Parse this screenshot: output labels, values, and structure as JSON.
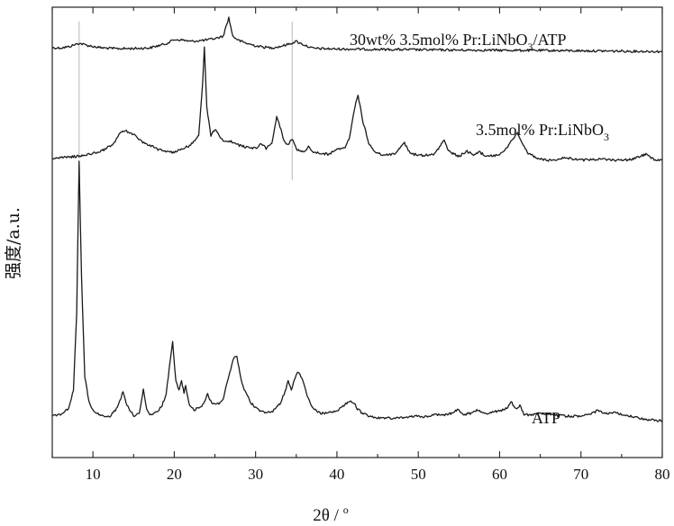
{
  "chart_data": {
    "type": "line",
    "xlabel_text": "2θ / ",
    "xlabel_unit": "o",
    "ylabel": "强度/a.u.",
    "xlim": [
      5,
      80
    ],
    "xticks": [
      10,
      20,
      30,
      40,
      50,
      60,
      70,
      80
    ],
    "minor_tick_step": 5,
    "y_ticks_shown": false,
    "grid": false,
    "reference_lines_x": [
      8.3,
      34.5
    ],
    "series": [
      {
        "name": "30wt%  3.5mol% Pr:LiNbO3/ATP",
        "label_main": "30wt%  3.5mol% Pr:LiNbO",
        "label_sub": "3",
        "label_tail": "/ATP",
        "color": "#1a1a1a",
        "points": [
          [
            5,
            0.62
          ],
          [
            6,
            0.6
          ],
          [
            7,
            0.75
          ],
          [
            8.3,
            1.25
          ],
          [
            9.5,
            0.9
          ],
          [
            11,
            0.62
          ],
          [
            13,
            0.5
          ],
          [
            15,
            0.52
          ],
          [
            17,
            0.6
          ],
          [
            19,
            1.2
          ],
          [
            20,
            1.75
          ],
          [
            21,
            1.7
          ],
          [
            22,
            1.5
          ],
          [
            23,
            1.6
          ],
          [
            24,
            1.7
          ],
          [
            25,
            1.9
          ],
          [
            26,
            2.2
          ],
          [
            26.7,
            4.8
          ],
          [
            27.2,
            2.2
          ],
          [
            28,
            1.6
          ],
          [
            29,
            1.2
          ],
          [
            30,
            0.9
          ],
          [
            31,
            0.7
          ],
          [
            32,
            0.62
          ],
          [
            33,
            0.8
          ],
          [
            34,
            1.1
          ],
          [
            35,
            1.5
          ],
          [
            36,
            1.0
          ],
          [
            37,
            0.55
          ],
          [
            38,
            0.5
          ],
          [
            40,
            0.45
          ],
          [
            45,
            0.4
          ],
          [
            50,
            0.35
          ],
          [
            55,
            0.3
          ],
          [
            60,
            0.28
          ],
          [
            65,
            0.25
          ],
          [
            70,
            0.2
          ],
          [
            75,
            0.15
          ],
          [
            80,
            0.1
          ]
        ]
      },
      {
        "name": "3.5mol% Pr:LiNbO3",
        "label_main": "3.5mol% Pr:LiNbO",
        "label_sub": "3",
        "label_tail": "",
        "color": "#1a1a1a",
        "points": [
          [
            5,
            0.3
          ],
          [
            7,
            0.4
          ],
          [
            9,
            0.6
          ],
          [
            11,
            1.0
          ],
          [
            12.5,
            1.7
          ],
          [
            13.3,
            2.8
          ],
          [
            14,
            3.1
          ],
          [
            15,
            2.7
          ],
          [
            16,
            2.0
          ],
          [
            17,
            1.6
          ],
          [
            18,
            1.2
          ],
          [
            19,
            1.0
          ],
          [
            20,
            0.9
          ],
          [
            21,
            1.3
          ],
          [
            22,
            1.6
          ],
          [
            23,
            2.6
          ],
          [
            23.5,
            8.0
          ],
          [
            23.7,
            11.5
          ],
          [
            24,
            5.5
          ],
          [
            24.5,
            2.6
          ],
          [
            25,
            3.2
          ],
          [
            25.5,
            2.6
          ],
          [
            26,
            2.1
          ],
          [
            27,
            2.0
          ],
          [
            28,
            1.6
          ],
          [
            29,
            1.4
          ],
          [
            30,
            1.3
          ],
          [
            30.7,
            1.8
          ],
          [
            31.3,
            1.3
          ],
          [
            32,
            1.8
          ],
          [
            32.6,
            4.5
          ],
          [
            33,
            3.5
          ],
          [
            33.5,
            2.0
          ],
          [
            34,
            1.6
          ],
          [
            34.5,
            2.3
          ],
          [
            35,
            1.2
          ],
          [
            36,
            1.0
          ],
          [
            36.5,
            1.5
          ],
          [
            37,
            1.0
          ],
          [
            38,
            0.8
          ],
          [
            39,
            0.7
          ],
          [
            40,
            1.2
          ],
          [
            41,
            1.4
          ],
          [
            41.5,
            2.2
          ],
          [
            42.2,
            5.5
          ],
          [
            42.6,
            6.6
          ],
          [
            43.2,
            4.0
          ],
          [
            44,
            1.6
          ],
          [
            45,
            0.8
          ],
          [
            46,
            0.6
          ],
          [
            47,
            0.7
          ],
          [
            48.3,
            1.8
          ],
          [
            49,
            0.8
          ],
          [
            50,
            0.6
          ],
          [
            51,
            0.6
          ],
          [
            52,
            0.7
          ],
          [
            53.2,
            2.2
          ],
          [
            53.7,
            1.0
          ],
          [
            55,
            0.5
          ],
          [
            56,
            1.0
          ],
          [
            56.8,
            0.6
          ],
          [
            57.5,
            0.9
          ],
          [
            58.5,
            0.5
          ],
          [
            60,
            0.6
          ],
          [
            61,
            1.5
          ],
          [
            61.8,
            2.4
          ],
          [
            62.2,
            2.9
          ],
          [
            62.8,
            1.8
          ],
          [
            63.5,
            0.8
          ],
          [
            65,
            0.2
          ],
          [
            66,
            0.1
          ],
          [
            67,
            0.2
          ],
          [
            68,
            0.4
          ],
          [
            69,
            0.2
          ],
          [
            70,
            0.1
          ],
          [
            72,
            0.2
          ],
          [
            74,
            0.1
          ],
          [
            76,
            0.15
          ],
          [
            78,
            0.7
          ],
          [
            79,
            0.2
          ],
          [
            80,
            0.1
          ]
        ]
      },
      {
        "name": "ATP",
        "label_main": "ATP",
        "label_sub": "",
        "label_tail": "",
        "color": "#1a1a1a",
        "points": [
          [
            5,
            0.6
          ],
          [
            6,
            0.8
          ],
          [
            7,
            1.4
          ],
          [
            7.6,
            3.5
          ],
          [
            8.0,
            12.0
          ],
          [
            8.3,
            29.0
          ],
          [
            8.6,
            16.0
          ],
          [
            9.0,
            5.0
          ],
          [
            9.5,
            2.2
          ],
          [
            10,
            1.2
          ],
          [
            11,
            0.6
          ],
          [
            12,
            0.5
          ],
          [
            13,
            1.5
          ],
          [
            13.7,
            3.3
          ],
          [
            14.2,
            1.8
          ],
          [
            15,
            0.6
          ],
          [
            15.7,
            1.0
          ],
          [
            16.2,
            3.5
          ],
          [
            16.6,
            1.5
          ],
          [
            17,
            0.8
          ],
          [
            17.5,
            0.9
          ],
          [
            18,
            1.2
          ],
          [
            18.5,
            1.8
          ],
          [
            19,
            3.0
          ],
          [
            19.4,
            6.0
          ],
          [
            19.8,
            8.8
          ],
          [
            20.2,
            4.5
          ],
          [
            20.6,
            3.5
          ],
          [
            20.9,
            4.5
          ],
          [
            21.2,
            3.2
          ],
          [
            21.4,
            3.9
          ],
          [
            21.8,
            2.0
          ],
          [
            22.5,
            1.3
          ],
          [
            23.5,
            1.8
          ],
          [
            24.1,
            3.0
          ],
          [
            24.6,
            2.0
          ],
          [
            25.5,
            2.0
          ],
          [
            26,
            2.5
          ],
          [
            26.7,
            5.0
          ],
          [
            27.3,
            7.1
          ],
          [
            27.7,
            7.2
          ],
          [
            28.2,
            4.8
          ],
          [
            28.6,
            3.5
          ],
          [
            29,
            2.8
          ],
          [
            29.5,
            2.0
          ],
          [
            30,
            1.5
          ],
          [
            30.5,
            1.2
          ],
          [
            31,
            1.0
          ],
          [
            32,
            1.0
          ],
          [
            32.5,
            1.5
          ],
          [
            33,
            2.0
          ],
          [
            33.5,
            3.0
          ],
          [
            34,
            4.5
          ],
          [
            34.4,
            3.6
          ],
          [
            35,
            5.2
          ],
          [
            35.3,
            5.5
          ],
          [
            35.7,
            4.8
          ],
          [
            36,
            4.0
          ],
          [
            36.5,
            2.5
          ],
          [
            37,
            1.5
          ],
          [
            38,
            0.9
          ],
          [
            39,
            1.0
          ],
          [
            40,
            1.2
          ],
          [
            40.5,
            1.6
          ],
          [
            41.2,
            2.0
          ],
          [
            41.7,
            2.3
          ],
          [
            42.1,
            2.1
          ],
          [
            42.5,
            1.4
          ],
          [
            43,
            1.0
          ],
          [
            44,
            0.6
          ],
          [
            45,
            0.4
          ],
          [
            46,
            0.35
          ],
          [
            48,
            0.4
          ],
          [
            50,
            0.6
          ],
          [
            51,
            0.5
          ],
          [
            52,
            0.8
          ],
          [
            53,
            0.7
          ],
          [
            54,
            0.9
          ],
          [
            54.8,
            1.3
          ],
          [
            55.5,
            0.8
          ],
          [
            56.5,
            0.9
          ],
          [
            57.3,
            1.3
          ],
          [
            58,
            0.9
          ],
          [
            59,
            1.0
          ],
          [
            60,
            1.2
          ],
          [
            61,
            1.5
          ],
          [
            61.4,
            2.2
          ],
          [
            62,
            1.4
          ],
          [
            62.5,
            1.8
          ],
          [
            63,
            0.8
          ],
          [
            64,
            0.7
          ],
          [
            65,
            0.9
          ],
          [
            66,
            0.8
          ],
          [
            67,
            0.7
          ],
          [
            68,
            0.6
          ],
          [
            70,
            0.6
          ],
          [
            71,
            0.7
          ],
          [
            72,
            1.2
          ],
          [
            73,
            0.9
          ],
          [
            74,
            1.0
          ],
          [
            75,
            0.8
          ],
          [
            76,
            0.6
          ],
          [
            77,
            0.4
          ],
          [
            78,
            0.2
          ],
          [
            80,
            0.1
          ]
        ]
      }
    ]
  }
}
